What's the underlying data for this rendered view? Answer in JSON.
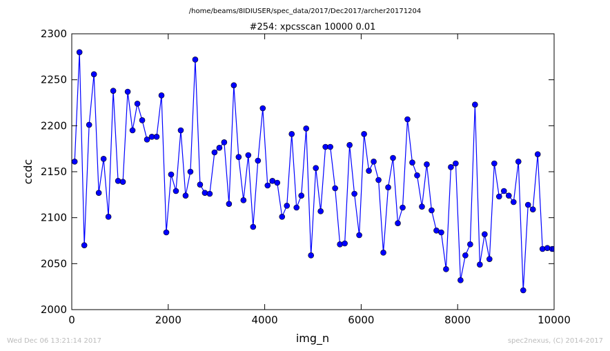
{
  "chart_data": {
    "type": "line",
    "suptitle": "/home/beams/8IDIUSER/spec_data/2017/Dec2017/archer20171204",
    "title": "#254: xpcsscan 10000 0.01",
    "xlabel": "img_n",
    "ylabel": "ccdc",
    "xlim": [
      0,
      10000
    ],
    "ylim": [
      2000,
      2300
    ],
    "xticks": [
      "0",
      "2000",
      "4000",
      "6000",
      "8000",
      "10000"
    ],
    "yticks": [
      "2000",
      "2050",
      "2100",
      "2150",
      "2200",
      "2250",
      "2300"
    ],
    "grid": false,
    "legend": "none",
    "line_color": "#0000ff",
    "marker_color": "#0000ff",
    "series": [
      {
        "x": [
          60,
          160,
          260,
          360,
          460,
          560,
          660,
          760,
          860,
          960,
          1060,
          1160,
          1260,
          1360,
          1460,
          1560,
          1660,
          1760,
          1860,
          1960,
          2060,
          2160,
          2260,
          2360,
          2460,
          2560,
          2660,
          2760,
          2860,
          2960,
          3060,
          3160,
          3260,
          3360,
          3460,
          3560,
          3660,
          3760,
          3860,
          3960,
          4060,
          4160,
          4260,
          4360,
          4460,
          4560,
          4660,
          4760,
          4860,
          4960,
          5060,
          5160,
          5260,
          5360,
          5460,
          5560,
          5660,
          5760,
          5860,
          5960,
          6060,
          6160,
          6260,
          6360,
          6460,
          6560,
          6660,
          6760,
          6860,
          6960,
          7060,
          7160,
          7260,
          7360,
          7460,
          7560,
          7660,
          7760,
          7860,
          7960,
          8060,
          8160,
          8260,
          8360,
          8460,
          8560,
          8660,
          8760,
          8860,
          8960,
          9060,
          9160,
          9260,
          9360,
          9460,
          9560,
          9660,
          9760,
          9860,
          9960,
          10000
        ],
        "y": [
          2161,
          2280,
          2070,
          2201,
          2256,
          2127,
          2164,
          2101,
          2238,
          2140,
          2139,
          2237,
          2195,
          2224,
          2206,
          2185,
          2188,
          2188,
          2233,
          2084,
          2147,
          2129,
          2195,
          2124,
          2150,
          2272,
          2136,
          2127,
          2126,
          2171,
          2176,
          2182,
          2115,
          2244,
          2166,
          2119,
          2168,
          2090,
          2162,
          2219,
          2135,
          2140,
          2138,
          2101,
          2113,
          2191,
          2111,
          2124,
          2197,
          2059,
          2154,
          2107,
          2177,
          2177,
          2132,
          2071,
          2072,
          2179,
          2126,
          2081,
          2191,
          2151,
          2161,
          2141,
          2062,
          2133,
          2165,
          2094,
          2111,
          2207,
          2160,
          2146,
          2112,
          2158,
          2108,
          2086,
          2084,
          2044,
          2155,
          2159,
          2032,
          2059,
          2071,
          2223,
          2049,
          2082,
          2055,
          2159,
          2123,
          2129,
          2124,
          2117,
          2161,
          2021,
          2114,
          2109,
          2169,
          2066,
          2067,
          2066,
          2066
        ]
      }
    ]
  },
  "footer": {
    "left": "Wed Dec 06 13:21:14 2017",
    "right": "spec2nexus, (C) 2014-2017"
  }
}
